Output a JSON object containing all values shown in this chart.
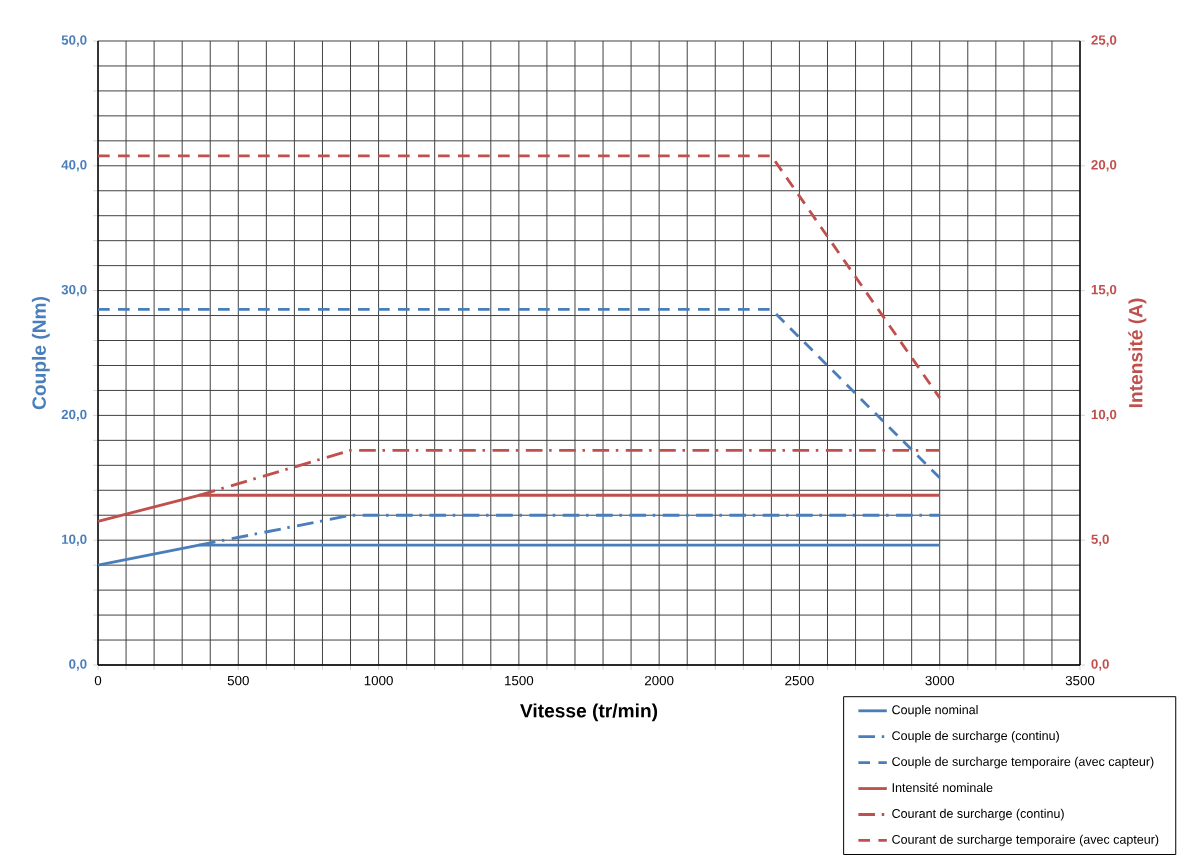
{
  "chart_data": {
    "type": "line",
    "xlabel": "Vitesse (tr/min)",
    "ylabel": "Couple (Nm)",
    "y2label": "Intensité (A)",
    "xlim": [
      0,
      3500
    ],
    "xticks": [
      0,
      {
        "value": 100,
        "label": null
      },
      {
        "value": 200,
        "label": null
      },
      {
        "value": 300,
        "label": null
      },
      {
        "value": 400,
        "label": null
      },
      500,
      {
        "value": 600,
        "label": null
      },
      {
        "value": 700,
        "label": null
      },
      {
        "value": 800,
        "label": null
      },
      {
        "value": 900,
        "label": null
      },
      1000,
      {
        "value": 1100,
        "label": null
      },
      {
        "value": 1200,
        "label": null
      },
      {
        "value": 1300,
        "label": null
      },
      {
        "value": 1400,
        "label": null
      },
      1500,
      {
        "value": 1600,
        "label": null
      },
      {
        "value": 1700,
        "label": null
      },
      {
        "value": 1800,
        "label": null
      },
      {
        "value": 1900,
        "label": null
      },
      2000,
      {
        "value": 2100,
        "label": null
      },
      {
        "value": 2200,
        "label": null
      },
      {
        "value": 2300,
        "label": null
      },
      {
        "value": 2400,
        "label": null
      },
      2500,
      {
        "value": 2600,
        "label": null
      },
      {
        "value": 2700,
        "label": null
      },
      {
        "value": 2800,
        "label": null
      },
      {
        "value": 2900,
        "label": null
      },
      3000,
      {
        "value": 3100,
        "label": null
      },
      {
        "value": 3200,
        "label": null
      },
      {
        "value": 3300,
        "label": null
      },
      {
        "value": 3400,
        "label": null
      },
      3500
    ],
    "ylim": [
      0,
      50
    ],
    "yticks": [
      {
        "value": 0,
        "label": "0,0"
      },
      {
        "value": 2,
        "label": null
      },
      {
        "value": 4,
        "label": null
      },
      {
        "value": 6,
        "label": null
      },
      {
        "value": 8,
        "label": null
      },
      {
        "value": 10,
        "label": "10,0"
      },
      {
        "value": 12,
        "label": null
      },
      {
        "value": 14,
        "label": null
      },
      {
        "value": 16,
        "label": null
      },
      {
        "value": 18,
        "label": null
      },
      {
        "value": 20,
        "label": "20,0"
      },
      {
        "value": 22,
        "label": null
      },
      {
        "value": 24,
        "label": null
      },
      {
        "value": 26,
        "label": null
      },
      {
        "value": 28,
        "label": null
      },
      {
        "value": 30,
        "label": "30,0"
      },
      {
        "value": 32,
        "label": null
      },
      {
        "value": 34,
        "label": null
      },
      {
        "value": 36,
        "label": null
      },
      {
        "value": 38,
        "label": null
      },
      {
        "value": 40,
        "label": "40,0"
      },
      {
        "value": 42,
        "label": null
      },
      {
        "value": 44,
        "label": null
      },
      {
        "value": 46,
        "label": null
      },
      {
        "value": 48,
        "label": null
      },
      {
        "value": 50,
        "label": "50,0"
      }
    ],
    "y2lim": [
      0,
      25
    ],
    "y2ticks": [
      {
        "value": 0,
        "label": "0,0"
      },
      {
        "value": 5,
        "label": "5,0"
      },
      {
        "value": 10,
        "label": "10,0"
      },
      {
        "value": 15,
        "label": "15,0"
      },
      {
        "value": 20,
        "label": "20,0"
      },
      {
        "value": 25,
        "label": "25,0"
      }
    ],
    "grid": true,
    "legend": "bottom right",
    "series": [
      {
        "name": "Couple nominal",
        "color": "#4a7ebb",
        "line_style": "solid",
        "x": [
          0,
          360,
          3000
        ],
        "values": [
          8.0,
          9.6,
          9.6
        ]
      },
      {
        "name": "Couple de surcharge (continu)",
        "color": "#4a7ebb",
        "line_style": "dashdot",
        "x": [
          360,
          900,
          3000
        ],
        "values": [
          9.6,
          12.0,
          12.0
        ]
      },
      {
        "name": "Couple de surcharge temporaire (avec capteur)",
        "color": "#4a7ebb",
        "line_style": "dashed",
        "x": [
          0,
          2400,
          3000
        ],
        "values": [
          28.5,
          28.5,
          15.0
        ]
      },
      {
        "name": "Intensité nominale",
        "color": "#c0504d",
        "line_style": "solid",
        "axis": "y2",
        "x": [
          0,
          360,
          3000
        ],
        "values": [
          5.75,
          6.8,
          6.8
        ]
      },
      {
        "name": "Courant de surcharge (continu)",
        "color": "#c0504d",
        "line_style": "dashdot",
        "axis": "y2",
        "x": [
          360,
          900,
          3000
        ],
        "values": [
          6.8,
          8.6,
          8.6
        ]
      },
      {
        "name": "Courant de surcharge temporaire (avec capteur)",
        "color": "#c0504d",
        "line_style": "dashed",
        "axis": "y2",
        "x": [
          0,
          2400,
          3000
        ],
        "values": [
          20.4,
          20.4,
          10.7
        ]
      }
    ]
  }
}
